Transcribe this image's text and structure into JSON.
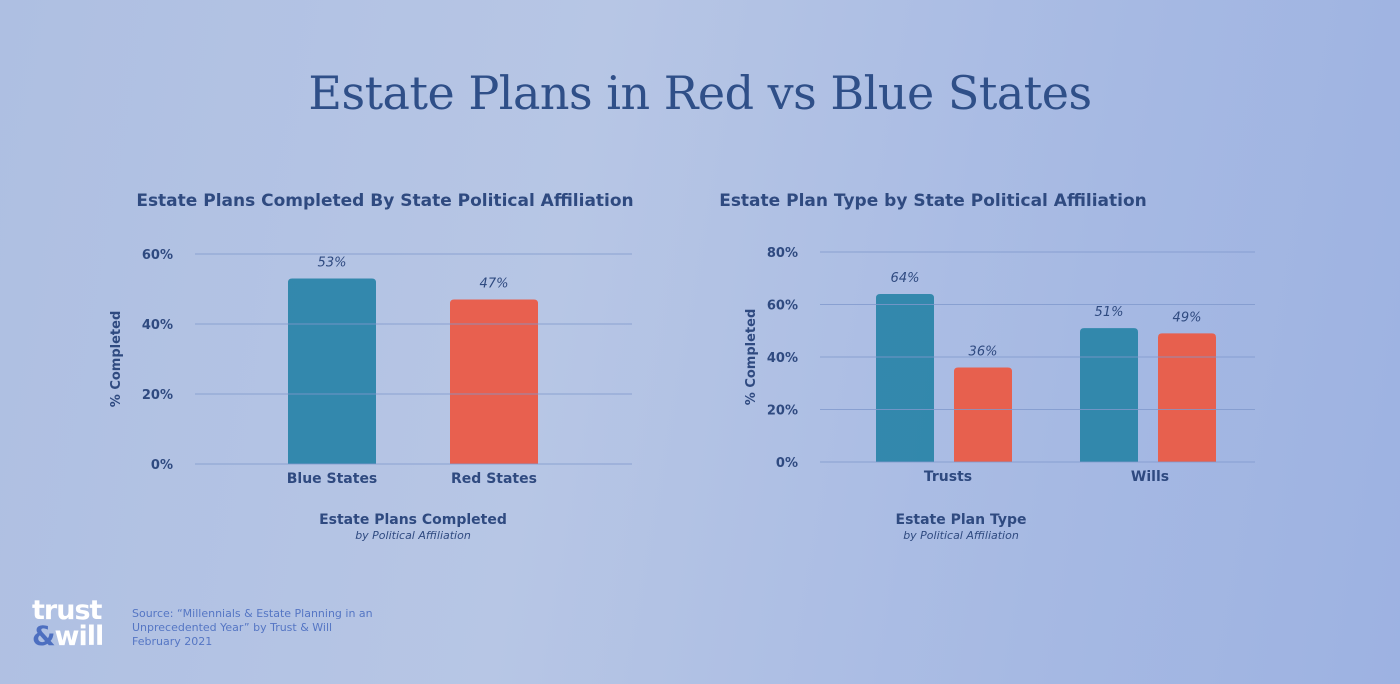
{
  "title": "Estate Plans in Red vs Blue States",
  "colors": {
    "blue": "#2e86aa",
    "red": "#e95d49",
    "text": "#2f4a80",
    "grid": "#7f98cc"
  },
  "chart_data": [
    {
      "type": "bar",
      "title": "Estate Plans Completed By State Political Affiliation",
      "ylabel": "% Completed",
      "xlabel": "Estate Plans Completed",
      "xsublabel": "by Political Affiliation",
      "ylim": [
        0,
        60
      ],
      "yticks": [
        "0%",
        "20%",
        "40%",
        "60%"
      ],
      "categories": [
        "Blue States",
        "Red States"
      ],
      "values": [
        53,
        47
      ],
      "data_labels": [
        "53%",
        "47%"
      ],
      "bar_colors": [
        "blue",
        "red"
      ],
      "grid": true
    },
    {
      "type": "bar",
      "title": "Estate Plan Type by State Political Affiliation",
      "ylabel": "% Completed",
      "xlabel": "Estate Plan Type",
      "xsublabel": "by Political Affiliation",
      "ylim": [
        0,
        80
      ],
      "yticks": [
        "0%",
        "20%",
        "40%",
        "60%",
        "80%"
      ],
      "categories": [
        "Trusts",
        "Wills"
      ],
      "series": [
        {
          "color": "blue",
          "values": [
            64,
            51
          ],
          "data_labels": [
            "64%",
            "51%"
          ]
        },
        {
          "color": "red",
          "values": [
            36,
            49
          ],
          "data_labels": [
            "36%",
            "49%"
          ]
        }
      ],
      "grid": true
    }
  ],
  "footer": {
    "logo_top": "trust",
    "logo_amp": "&",
    "logo_bottom": "will",
    "source_lines": [
      "Source: “Millennials & Estate Planning in an",
      "Unprecedented Year” by Trust & Will",
      "February 2021"
    ]
  }
}
